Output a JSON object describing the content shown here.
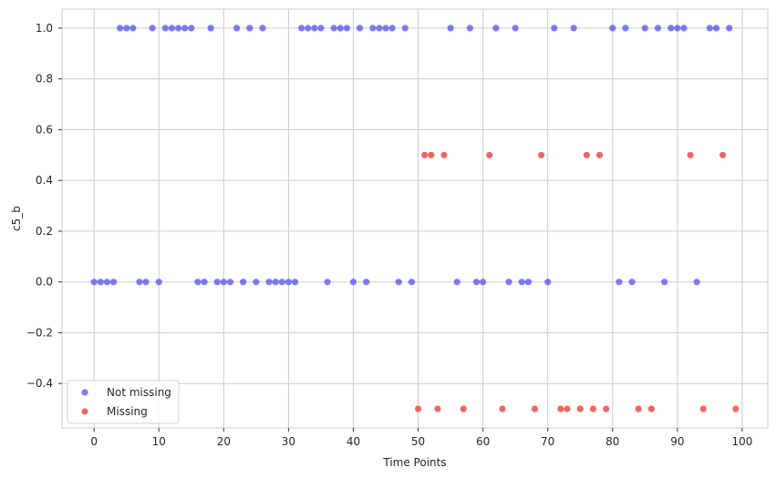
{
  "chart_data": {
    "type": "scatter",
    "xlabel": "Time Points",
    "ylabel": "c5_b",
    "xlim": [
      -4.95,
      103.95
    ],
    "ylim": [
      -0.575,
      1.075
    ],
    "xticks": [
      0,
      10,
      20,
      30,
      40,
      50,
      60,
      70,
      80,
      90,
      100
    ],
    "xtick_labels": [
      "0",
      "10",
      "20",
      "30",
      "40",
      "50",
      "60",
      "70",
      "80",
      "90",
      "100"
    ],
    "yticks": [
      -0.4,
      -0.2,
      0.0,
      0.2,
      0.4,
      0.6,
      0.8,
      1.0
    ],
    "ytick_labels": [
      "−0.4",
      "−0.2",
      "0.0",
      "0.2",
      "0.4",
      "0.6",
      "0.8",
      "1.0"
    ],
    "grid": true,
    "legend_position": "lower-left",
    "series": [
      {
        "name": "Not missing",
        "color": "#5a5af0",
        "x": [
          0,
          1,
          2,
          3,
          4,
          5,
          6,
          7,
          8,
          9,
          10,
          11,
          12,
          13,
          14,
          15,
          16,
          17,
          18,
          19,
          20,
          21,
          22,
          23,
          24,
          25,
          26,
          27,
          28,
          29,
          30,
          31,
          32,
          33,
          34,
          35,
          36,
          37,
          38,
          39,
          40,
          41,
          42,
          43,
          44,
          45,
          46,
          47,
          48,
          49,
          55,
          56,
          58,
          59,
          60,
          62,
          64,
          65,
          66,
          67,
          70,
          71,
          74,
          80,
          81,
          82,
          83,
          85,
          87,
          88,
          89,
          90,
          91,
          93,
          95,
          96,
          98
        ],
        "y": [
          0,
          0,
          0,
          0,
          1,
          1,
          1,
          0,
          0,
          1,
          0,
          1,
          1,
          1,
          1,
          1,
          0,
          0,
          1,
          0,
          0,
          0,
          1,
          0,
          1,
          0,
          1,
          0,
          0,
          0,
          0,
          0,
          1,
          1,
          1,
          1,
          0,
          1,
          1,
          1,
          0,
          1,
          0,
          1,
          1,
          1,
          1,
          0,
          1,
          0,
          1,
          0,
          1,
          0,
          0,
          1,
          0,
          1,
          0,
          0,
          0,
          1,
          1,
          1,
          0,
          1,
          0,
          1,
          1,
          0,
          1,
          1,
          1,
          0,
          1,
          1,
          1
        ]
      },
      {
        "name": "Missing",
        "color": "#e8413b",
        "x": [
          50,
          51,
          52,
          53,
          54,
          57,
          61,
          63,
          68,
          69,
          72,
          73,
          75,
          76,
          77,
          78,
          79,
          84,
          86,
          92,
          94,
          97,
          99
        ],
        "y": [
          -0.5,
          0.5,
          0.5,
          -0.5,
          0.5,
          -0.5,
          0.5,
          -0.5,
          -0.5,
          0.5,
          -0.5,
          -0.5,
          -0.5,
          0.5,
          -0.5,
          0.5,
          -0.5,
          -0.5,
          -0.5,
          0.5,
          -0.5,
          0.5,
          -0.5
        ]
      }
    ]
  }
}
